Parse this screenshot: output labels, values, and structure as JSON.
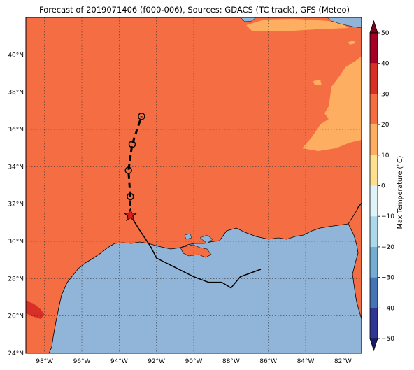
{
  "title": "Forecast of 2019071406 (f000-006), Sources: GDACS (TC track), GFS (Meteo)",
  "map": {
    "lon_range": [
      -99.0,
      -81.0
    ],
    "lat_range": [
      24.0,
      42.0
    ],
    "lon_ticks": [
      {
        "value": -98,
        "label": "98°W"
      },
      {
        "value": -96,
        "label": "96°W"
      },
      {
        "value": -94,
        "label": "94°W"
      },
      {
        "value": -92,
        "label": "92°W"
      },
      {
        "value": -90,
        "label": "90°W"
      },
      {
        "value": -88,
        "label": "88°W"
      },
      {
        "value": -86,
        "label": "86°W"
      },
      {
        "value": -84,
        "label": "84°W"
      },
      {
        "value": -82,
        "label": "82°W"
      }
    ],
    "lat_ticks": [
      {
        "value": 24,
        "label": "24°N"
      },
      {
        "value": 26,
        "label": "26°N"
      },
      {
        "value": 28,
        "label": "28°N"
      },
      {
        "value": 30,
        "label": "30°N"
      },
      {
        "value": 32,
        "label": "32°N"
      },
      {
        "value": 34,
        "label": "34°N"
      },
      {
        "value": 36,
        "label": "36°N"
      },
      {
        "value": 38,
        "label": "38°N"
      },
      {
        "value": 40,
        "label": "40°N"
      }
    ],
    "gridlines": "dotted",
    "colors": {
      "land_20_30": "#f46d43",
      "land_10_20": "#fdae61",
      "land_30_40": "#d73027",
      "water": "#91b5d9",
      "coast": "#000000"
    }
  },
  "track": {
    "past": [
      {
        "lon": -86.4,
        "lat": 28.5
      },
      {
        "lon": -87.5,
        "lat": 28.1
      },
      {
        "lon": -88.0,
        "lat": 27.5
      },
      {
        "lon": -88.5,
        "lat": 27.8
      },
      {
        "lon": -89.2,
        "lat": 27.8
      },
      {
        "lon": -90.0,
        "lat": 28.1
      },
      {
        "lon": -91.0,
        "lat": 28.6
      },
      {
        "lon": -91.4,
        "lat": 28.8
      },
      {
        "lon": -92.0,
        "lat": 29.1
      },
      {
        "lon": -92.3,
        "lat": 29.7
      },
      {
        "lon": -92.9,
        "lat": 30.6
      },
      {
        "lon": -93.4,
        "lat": 31.4
      }
    ],
    "current": {
      "lon": -93.4,
      "lat": 31.4
    },
    "forecast": [
      {
        "lon": -93.4,
        "lat": 32.4
      },
      {
        "lon": -93.5,
        "lat": 33.8
      },
      {
        "lon": -93.3,
        "lat": 35.2
      },
      {
        "lon": -92.8,
        "lat": 36.7
      }
    ]
  },
  "colorbar": {
    "label": "Max Temperature (°C)",
    "min": -50,
    "max": 50,
    "ticks": [
      {
        "value": 50,
        "label": "50"
      },
      {
        "value": 40,
        "label": "40"
      },
      {
        "value": 30,
        "label": "30"
      },
      {
        "value": 20,
        "label": "20"
      },
      {
        "value": 10,
        "label": "10"
      },
      {
        "value": 0,
        "label": "0"
      },
      {
        "value": -10,
        "label": "−10"
      },
      {
        "value": -20,
        "label": "−20"
      },
      {
        "value": -30,
        "label": "−30"
      },
      {
        "value": -40,
        "label": "−40"
      },
      {
        "value": -50,
        "label": "−50"
      }
    ],
    "bands": [
      {
        "from": 40,
        "to": 50,
        "color": "#a50026"
      },
      {
        "from": 30,
        "to": 40,
        "color": "#d73027"
      },
      {
        "from": 20,
        "to": 30,
        "color": "#f46d43"
      },
      {
        "from": 10,
        "to": 20,
        "color": "#fdae61"
      },
      {
        "from": 0,
        "to": 10,
        "color": "#fee090"
      },
      {
        "from": -10,
        "to": 0,
        "color": "#e0f3f8"
      },
      {
        "from": -20,
        "to": -10,
        "color": "#abd9e9"
      },
      {
        "from": -30,
        "to": -20,
        "color": "#74add1"
      },
      {
        "from": -40,
        "to": -30,
        "color": "#4575b4"
      },
      {
        "from": -50,
        "to": -40,
        "color": "#313695"
      }
    ],
    "over_color": "#7f0018",
    "under_color": "#1a1868"
  }
}
